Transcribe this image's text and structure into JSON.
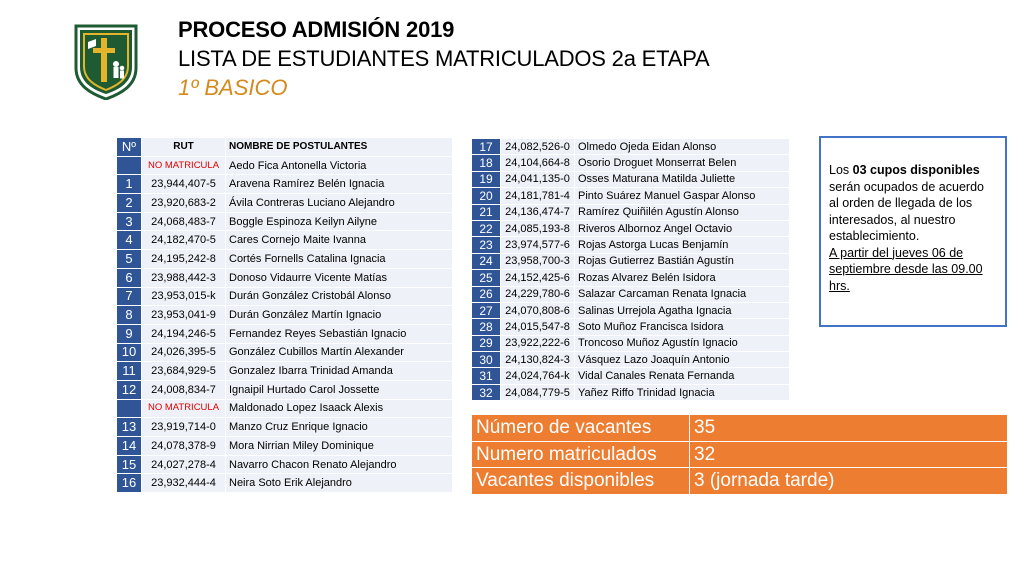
{
  "title": "PROCESO ADMISIÓN 2019",
  "subtitle": "LISTA DE ESTUDIANTES MATRICULADOS 2a ETAPA",
  "course": "1º BASICO",
  "table_left": {
    "headers": {
      "num": "Nº",
      "rut": "RUT",
      "name": "NOMBRE DE POSTULANTES"
    },
    "rows": [
      {
        "num": "",
        "rut": "NO MATRICULA",
        "name": "Aedo Fica Antonella Victoria",
        "not_enrolled": true
      },
      {
        "num": "1",
        "rut": "23,944,407-5",
        "name": "Aravena Ramírez Belén Ignacia"
      },
      {
        "num": "2",
        "rut": "23,920,683-2",
        "name": "Ávila Contreras Luciano Alejandro"
      },
      {
        "num": "3",
        "rut": "24,068,483-7",
        "name": "Boggle Espinoza Keilyn Ailyne"
      },
      {
        "num": "4",
        "rut": "24,182,470-5",
        "name": "Cares Cornejo Maite Ivanna"
      },
      {
        "num": "5",
        "rut": "24,195,242-8",
        "name": "Cortés Fornells Catalina Ignacia"
      },
      {
        "num": "6",
        "rut": "23,988,442-3",
        "name": "Donoso Vidaurre Vicente Matías"
      },
      {
        "num": "7",
        "rut": "23,953,015-k",
        "name": "Durán González Cristobál Alonso"
      },
      {
        "num": "8",
        "rut": "23,953,041-9",
        "name": "Durán González Martín Ignacio"
      },
      {
        "num": "9",
        "rut": "24,194,246-5",
        "name": "Fernandez Reyes Sebastián Ignacio"
      },
      {
        "num": "10",
        "rut": "24,026,395-5",
        "name": "González Cubillos Martín Alexander"
      },
      {
        "num": "11",
        "rut": "23,684,929-5",
        "name": "Gonzalez Ibarra Trinidad Amanda"
      },
      {
        "num": "12",
        "rut": "24,008,834-7",
        "name": "Ignaipil Hurtado Carol Jossette"
      },
      {
        "num": "",
        "rut": "NO MATRICULA",
        "name": "Maldonado Lopez Isaack Alexis",
        "not_enrolled": true
      },
      {
        "num": "13",
        "rut": "23,919,714-0",
        "name": "Manzo Cruz Enrique Ignacio"
      },
      {
        "num": "14",
        "rut": "24,078,378-9",
        "name": "Mora Nirrian Miley Dominique"
      },
      {
        "num": "15",
        "rut": "24,027,278-4",
        "name": "Navarro Chacon Renato Alejandro"
      },
      {
        "num": "16",
        "rut": "23,932,444-4",
        "name": "Neira Soto Erik Alejandro"
      }
    ]
  },
  "table_right": {
    "rows": [
      {
        "num": "17",
        "rut": "24,082,526-0",
        "name": "Olmedo Ojeda Eidan Alonso"
      },
      {
        "num": "18",
        "rut": "24,104,664-8",
        "name": "Osorio Droguet Monserrat Belen"
      },
      {
        "num": "19",
        "rut": "24,041,135-0",
        "name": "Osses Maturana Matilda Juliette"
      },
      {
        "num": "20",
        "rut": "24,181,781-4",
        "name": "Pinto Suárez Manuel Gaspar Alonso"
      },
      {
        "num": "21",
        "rut": "24,136,474-7",
        "name": "Ramírez Quiñilén Agustín Alonso"
      },
      {
        "num": "22",
        "rut": "24,085,193-8",
        "name": "Riveros Albornoz Angel Octavio"
      },
      {
        "num": "23",
        "rut": "23,974,577-6",
        "name": "Rojas Astorga Lucas Benjamín"
      },
      {
        "num": "24",
        "rut": "23,958,700-3",
        "name": "Rojas Gutierrez Bastián Agustín"
      },
      {
        "num": "25",
        "rut": "24,152,425-6",
        "name": "Rozas Alvarez Belén Isidora"
      },
      {
        "num": "26",
        "rut": "24,229,780-6",
        "name": "Salazar Carcaman Renata Ignacia"
      },
      {
        "num": "27",
        "rut": "24,070,808-6",
        "name": "Salinas Urrejola Agatha Ignacia"
      },
      {
        "num": "28",
        "rut": "24,015,547-8",
        "name": "Soto Muñoz Francisca Isidora"
      },
      {
        "num": "29",
        "rut": "23,922,222-6",
        "name": "Troncoso Muñoz Agustín Ignacio"
      },
      {
        "num": "30",
        "rut": "24,130,824-3",
        "name": "Vásquez Lazo Joaquín Antonio"
      },
      {
        "num": "31",
        "rut": "24,024,764-k",
        "name": "Vidal Canales Renata Fernanda"
      },
      {
        "num": "32",
        "rut": "24,084,779-5",
        "name": "Yañez Riffo Trinidad Ignacia"
      }
    ]
  },
  "info": {
    "pre": "Los ",
    "bold": "03 cupos disponibles",
    "post": " serán ocupados de acuerdo al orden de llegada de los interesados, al nuestro establecimiento.",
    "underlined": "A partir del jueves 06 de septiembre desde las 09.00 hrs."
  },
  "summary": [
    {
      "label": "Número de vacantes",
      "value": "35"
    },
    {
      "label": "Numero matriculados",
      "value": "32"
    },
    {
      "label": "Vacantes disponibles",
      "value": "3 (jornada tarde)"
    }
  ],
  "colors": {
    "num_cell": "#2f5597",
    "row_bg": "#eef1f7",
    "not_enrolled_text": "#e00000",
    "summary_bg": "#ed7d31",
    "course_text": "#d48a1c",
    "info_border": "#4472c4",
    "logo_green": "#1e5a32",
    "logo_gold": "#e4b52b"
  },
  "icons": {
    "logo": "school-crest-icon"
  }
}
